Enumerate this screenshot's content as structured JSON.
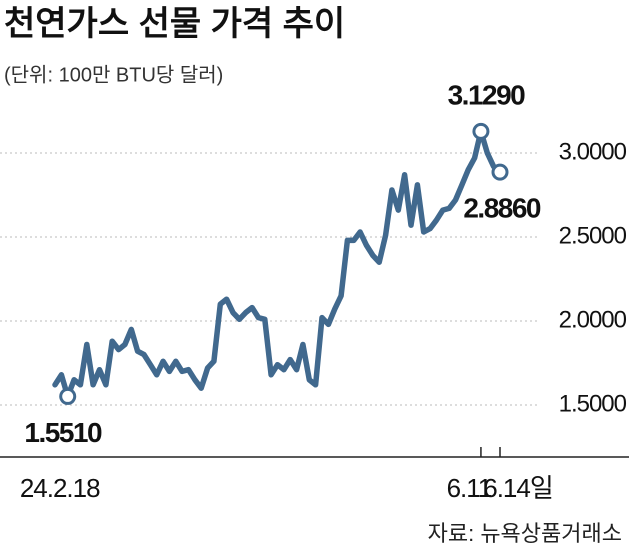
{
  "chart_data": {
    "type": "line",
    "title": "천연가스 선물 가격 추이",
    "subtitle": "(단위:  100만 BTU당 달러)",
    "source": "자료: 뉴욕상품거래소",
    "categories": [
      null,
      null,
      "24.2.18",
      null,
      null,
      null,
      null,
      null,
      null,
      null,
      null,
      null,
      null,
      null,
      null,
      null,
      null,
      null,
      null,
      null,
      null,
      null,
      null,
      null,
      null,
      null,
      null,
      null,
      null,
      null,
      null,
      null,
      null,
      null,
      null,
      null,
      null,
      null,
      null,
      null,
      null,
      null,
      null,
      null,
      null,
      null,
      null,
      null,
      null,
      null,
      null,
      null,
      null,
      null,
      null,
      null,
      null,
      null,
      null,
      null,
      null,
      null,
      null,
      null,
      null,
      null,
      null,
      "6.11",
      null,
      null,
      "6.14일"
    ],
    "values": [
      1.62,
      1.68,
      1.551,
      1.65,
      1.62,
      1.86,
      1.62,
      1.71,
      1.62,
      1.88,
      1.83,
      1.86,
      1.95,
      1.82,
      1.8,
      1.74,
      1.68,
      1.76,
      1.7,
      1.76,
      1.7,
      1.71,
      1.65,
      1.6,
      1.72,
      1.76,
      2.1,
      2.13,
      2.05,
      2.01,
      2.05,
      2.08,
      2.02,
      2.01,
      1.68,
      1.74,
      1.71,
      1.77,
      1.71,
      1.86,
      1.65,
      1.62,
      2.02,
      1.98,
      2.07,
      2.15,
      2.48,
      2.48,
      2.53,
      2.45,
      2.39,
      2.35,
      2.51,
      2.78,
      2.66,
      2.87,
      2.57,
      2.81,
      2.53,
      2.55,
      2.6,
      2.66,
      2.67,
      2.72,
      2.81,
      2.9,
      2.97,
      3.129,
      3.0,
      2.92,
      2.886
    ],
    "value_labels": [
      null,
      null,
      "1.5510",
      null,
      null,
      null,
      null,
      null,
      null,
      null,
      null,
      null,
      null,
      null,
      null,
      null,
      null,
      null,
      null,
      null,
      null,
      null,
      null,
      null,
      null,
      null,
      null,
      null,
      null,
      null,
      null,
      null,
      null,
      null,
      null,
      null,
      null,
      null,
      null,
      null,
      null,
      null,
      null,
      null,
      null,
      null,
      null,
      null,
      null,
      null,
      null,
      null,
      null,
      null,
      null,
      null,
      null,
      null,
      null,
      null,
      null,
      null,
      null,
      null,
      null,
      null,
      null,
      "3.1290",
      null,
      null,
      "2.8860"
    ],
    "color": "#41698e",
    "ylim": [
      1.2,
      3.4
    ],
    "yticks": [
      {
        "value": 1.5,
        "label": "1.5000"
      },
      {
        "value": 2.0,
        "label": "2.0000"
      },
      {
        "value": 2.5,
        "label": "2.5000"
      },
      {
        "value": 3.0,
        "label": "3.0000"
      }
    ],
    "grid": true
  }
}
